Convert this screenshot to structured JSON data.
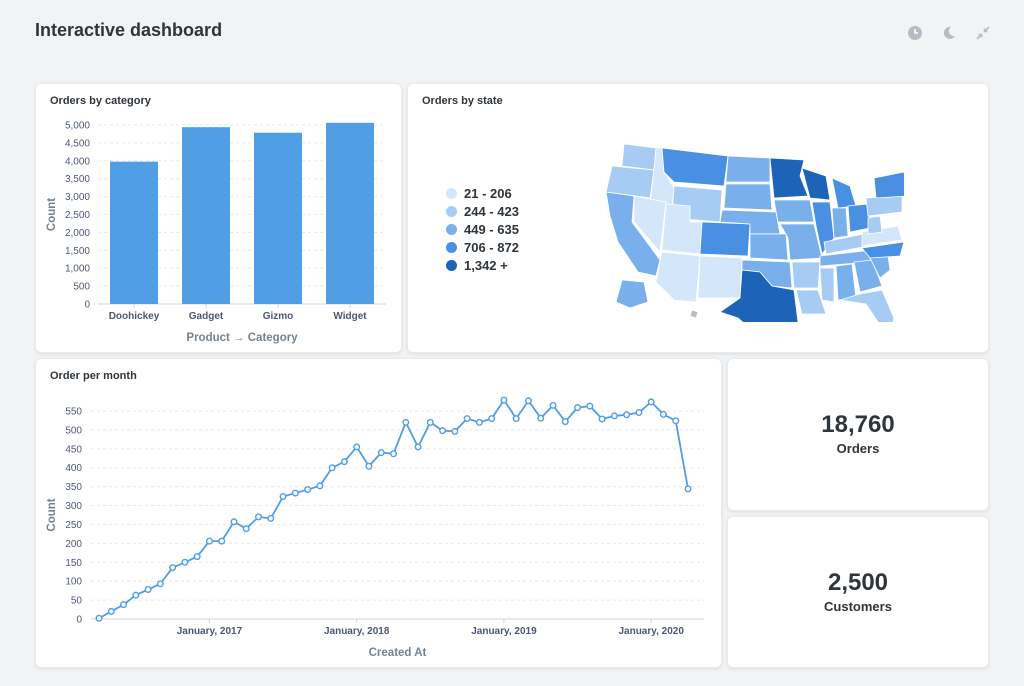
{
  "header": {
    "title": "Interactive dashboard",
    "icons": [
      "clock-icon",
      "moon-icon",
      "collapse-icon"
    ]
  },
  "bar_card": {
    "title": "Orders by category"
  },
  "map_card": {
    "title": "Orders by state",
    "legend": [
      {
        "label": "21 - 206",
        "color": "#d4e6f9"
      },
      {
        "label": "244 - 423",
        "color": "#a7ccf3"
      },
      {
        "label": "449 - 635",
        "color": "#79b0ec"
      },
      {
        "label": "706 - 872",
        "color": "#4a90e2"
      },
      {
        "label": "1,342 +",
        "color": "#1d63b8"
      }
    ]
  },
  "line_card": {
    "title": "Order per month"
  },
  "orders_card": {
    "value": "18,760",
    "label": "Orders"
  },
  "customers_card": {
    "value": "2,500",
    "label": "Customers"
  },
  "chart_data": [
    {
      "type": "bar",
      "title": "Orders by category",
      "categories": [
        "Doohickey",
        "Gadget",
        "Gizmo",
        "Widget"
      ],
      "values": [
        3976,
        4939,
        4784,
        5061
      ],
      "xlabel": "Product → Category",
      "ylabel": "Count",
      "ylim": [
        0,
        5000
      ],
      "yticks": [
        "0",
        "500",
        "1,000",
        "1,500",
        "2,000",
        "2,500",
        "3,000",
        "3,500",
        "4,000",
        "4,500",
        "5,000"
      ],
      "color": "#509ee3",
      "grid": true
    },
    {
      "type": "line",
      "title": "Order per month",
      "xlabel": "Created At",
      "ylabel": "Count",
      "ylim": [
        0,
        550
      ],
      "yticks": [
        "0",
        "50",
        "100",
        "150",
        "200",
        "250",
        "300",
        "350",
        "400",
        "450",
        "500",
        "550"
      ],
      "xticks": [
        "January, 2017",
        "January, 2018",
        "January, 2019",
        "January, 2020"
      ],
      "x": [
        "2016-04",
        "2016-05",
        "2016-06",
        "2016-07",
        "2016-08",
        "2016-09",
        "2016-10",
        "2016-11",
        "2016-12",
        "2017-01",
        "2017-02",
        "2017-03",
        "2017-04",
        "2017-05",
        "2017-06",
        "2017-07",
        "2017-08",
        "2017-09",
        "2017-10",
        "2017-11",
        "2017-12",
        "2018-01",
        "2018-02",
        "2018-03",
        "2018-04",
        "2018-05",
        "2018-06",
        "2018-07",
        "2018-08",
        "2018-09",
        "2018-10",
        "2018-11",
        "2018-12",
        "2019-01",
        "2019-02",
        "2019-03",
        "2019-04",
        "2019-05",
        "2019-06",
        "2019-07",
        "2019-08",
        "2019-09",
        "2019-10",
        "2019-11",
        "2019-12",
        "2020-01",
        "2020-02",
        "2020-03",
        "2020-04"
      ],
      "values": [
        2,
        20,
        38,
        63,
        78,
        93,
        136,
        150,
        165,
        206,
        206,
        257,
        239,
        270,
        266,
        324,
        333,
        342,
        352,
        400,
        416,
        455,
        404,
        440,
        437,
        520,
        455,
        520,
        498,
        496,
        530,
        520,
        530,
        579,
        530,
        577,
        531,
        565,
        522,
        559,
        563,
        529,
        537,
        540,
        546,
        574,
        541,
        524,
        344
      ],
      "color": "#509ee3",
      "grid": true
    }
  ]
}
